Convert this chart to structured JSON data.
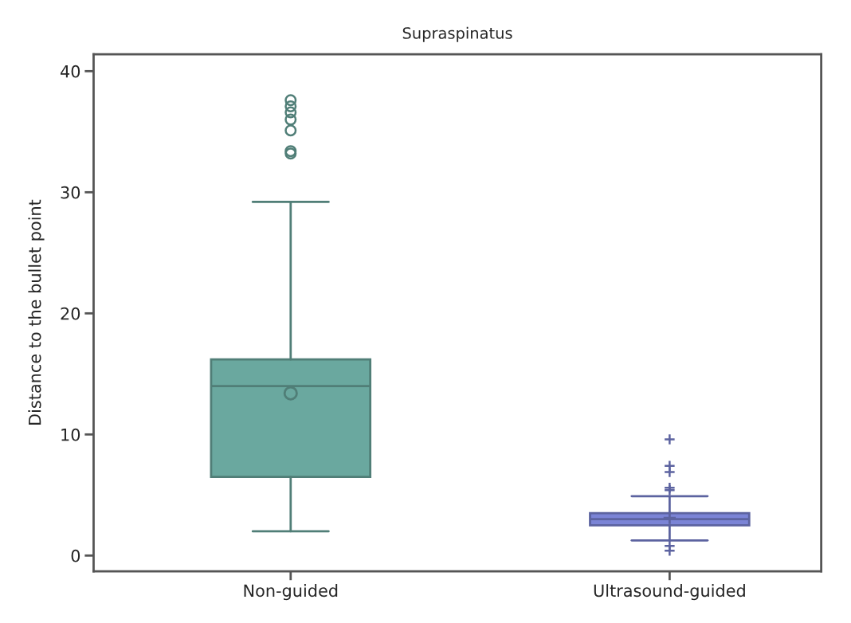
{
  "chart_data": {
    "type": "box",
    "title": "Supraspinatus",
    "ylabel": "Distance to the bullet point",
    "categories": [
      "Non-guided",
      "Ultrasound-guided"
    ],
    "series": [
      {
        "color": "#6aa89f",
        "marker": "circle",
        "boxes": [
          {
            "low": 2.0,
            "q1": 6.5,
            "median": 14.0,
            "q3": 16.2,
            "high": 29.2,
            "mean": 13.4,
            "outliers": [
              37.6,
              37.1,
              36.6,
              36.0,
              35.1,
              33.4,
              33.2
            ]
          },
          null
        ]
      },
      {
        "color": "#7b84d6",
        "marker": "cross",
        "boxes": [
          null,
          {
            "low": 1.25,
            "q1": 2.5,
            "median": 3.0,
            "q3": 3.5,
            "high": 4.9,
            "mean": 3.1,
            "outliers": [
              9.6,
              7.4,
              6.9,
              5.6,
              5.4,
              0.8,
              0.4
            ]
          }
        ]
      }
    ],
    "ylim": [
      -1.3,
      41.4
    ],
    "yticks": [
      0,
      10,
      20,
      30,
      40
    ],
    "grid": false,
    "legend": false
  }
}
